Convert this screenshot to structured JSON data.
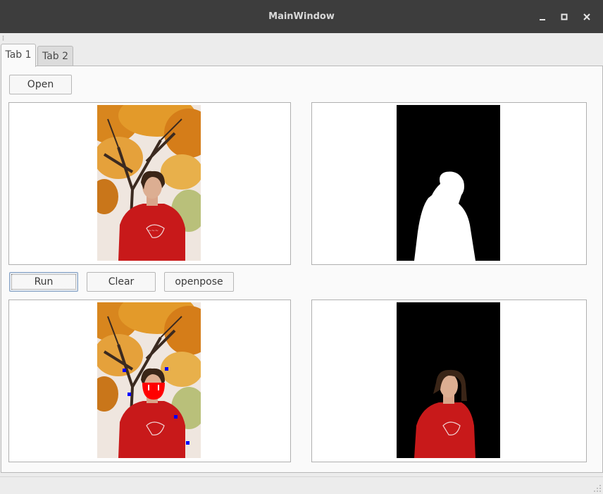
{
  "window": {
    "title": "MainWindow",
    "controls": [
      "minimize-icon",
      "maximize-icon",
      "close-icon"
    ]
  },
  "tabs": [
    {
      "label": "Tab 1",
      "active": true
    },
    {
      "label": "Tab 2",
      "active": false
    }
  ],
  "buttons": {
    "open": "Open",
    "run": "Run",
    "clear": "Clear",
    "openpose": "openpose"
  },
  "panels": {
    "source": {
      "content": "photo of person in red sweater under autumn tree"
    },
    "mask": {
      "content": "binary segmentation mask (white person on black)"
    },
    "annotated": {
      "content": "photo with red face mark and blue keypoint markers"
    },
    "cutout": {
      "content": "person cutout on black background"
    }
  },
  "colors": {
    "titlebar": "#3d3d3d",
    "mark_red": "#ff0000",
    "keypoint_blue": "#0000ff",
    "sweater_red": "#c8191a"
  }
}
